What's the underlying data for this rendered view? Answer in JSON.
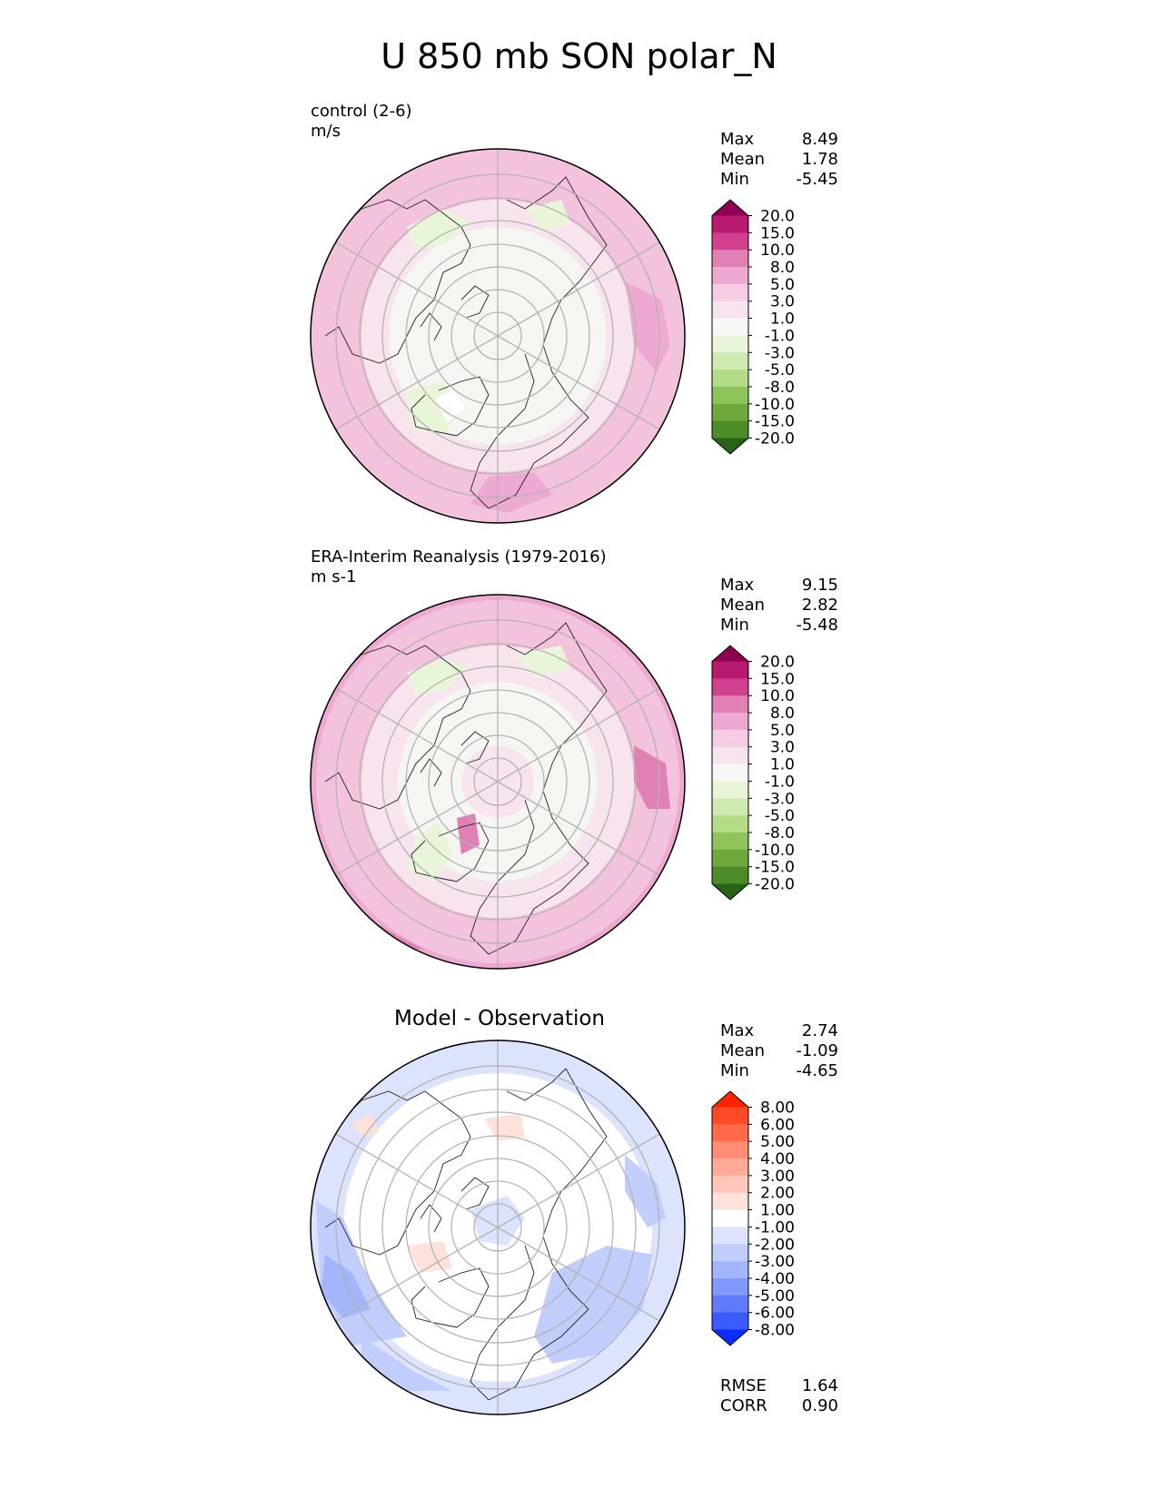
{
  "title": "U 850 mb SON polar_N",
  "panels": [
    {
      "id": "control",
      "label_lines": [
        "control (2-6)",
        "m/s"
      ],
      "stats": [
        {
          "key": "Max",
          "value": "8.49"
        },
        {
          "key": "Mean",
          "value": "1.78"
        },
        {
          "key": "Min",
          "value": "-5.45"
        }
      ],
      "colorbar": {
        "ticks": [
          "20.0",
          "15.0",
          "10.0",
          "8.0",
          "5.0",
          "3.0",
          "1.0",
          "-1.0",
          "-3.0",
          "-5.0",
          "-8.0",
          "-10.0",
          "-15.0",
          "-20.0"
        ],
        "colors": [
          "#8e0152",
          "#b7196e",
          "#d0408f",
          "#e180b4",
          "#eda9d2",
          "#f6cde5",
          "#f8e4ef",
          "#f7f7f6",
          "#e9f5d8",
          "#cfeab0",
          "#b3dc86",
          "#8fc35c",
          "#6fa83c",
          "#4c8c29",
          "#276419"
        ]
      }
    },
    {
      "id": "era-interim",
      "label_lines": [
        "ERA-Interim Reanalysis (1979-2016)",
        "m s-1"
      ],
      "stats": [
        {
          "key": "Max",
          "value": "9.15"
        },
        {
          "key": "Mean",
          "value": "2.82"
        },
        {
          "key": "Min",
          "value": "-5.48"
        }
      ],
      "colorbar": {
        "ticks": [
          "20.0",
          "15.0",
          "10.0",
          "8.0",
          "5.0",
          "3.0",
          "1.0",
          "-1.0",
          "-3.0",
          "-5.0",
          "-8.0",
          "-10.0",
          "-15.0",
          "-20.0"
        ],
        "colors": [
          "#8e0152",
          "#b7196e",
          "#d0408f",
          "#e180b4",
          "#eda9d2",
          "#f6cde5",
          "#f8e4ef",
          "#f7f7f6",
          "#e9f5d8",
          "#cfeab0",
          "#b3dc86",
          "#8fc35c",
          "#6fa83c",
          "#4c8c29",
          "#276419"
        ]
      }
    },
    {
      "id": "difference",
      "title": "Model - Observation",
      "stats": [
        {
          "key": "Max",
          "value": "2.74"
        },
        {
          "key": "Mean",
          "value": "-1.09"
        },
        {
          "key": "Min",
          "value": "-4.65"
        }
      ],
      "metrics": [
        {
          "key": "RMSE",
          "value": "1.64"
        },
        {
          "key": "CORR",
          "value": "0.90"
        }
      ],
      "colorbar": {
        "ticks": [
          "8.00",
          "6.00",
          "5.00",
          "4.00",
          "3.00",
          "2.00",
          "1.00",
          "-1.00",
          "-2.00",
          "-3.00",
          "-4.00",
          "-5.00",
          "-6.00",
          "-8.00"
        ],
        "colors": [
          "#ff2200",
          "#ff4a26",
          "#ff6a4a",
          "#ff8c74",
          "#ffab98",
          "#ffc7ba",
          "#fde2dc",
          "#ffffff",
          "#dce3fd",
          "#c1cdfb",
          "#a4b6fa",
          "#8399fb",
          "#5f7cfb",
          "#3a5bfd",
          "#0d2bff"
        ]
      }
    }
  ]
}
